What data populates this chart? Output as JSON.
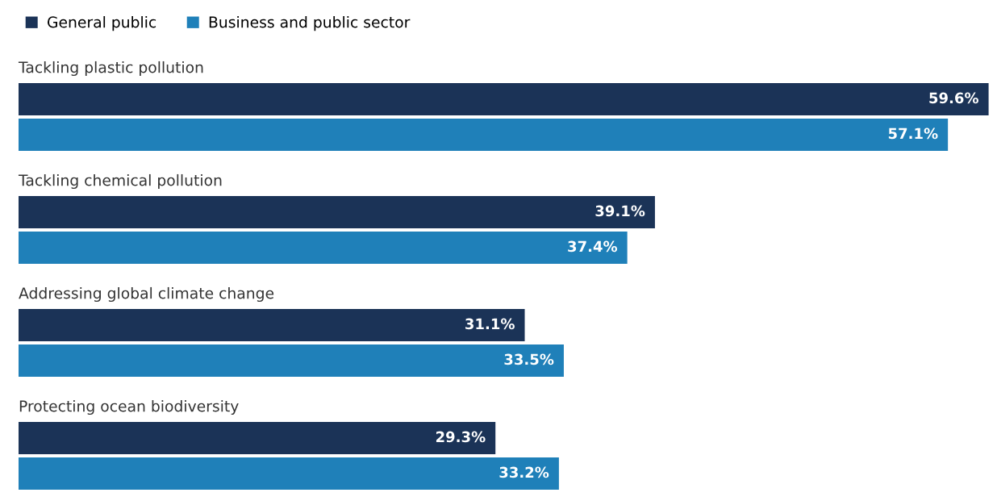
{
  "chart_data": {
    "type": "bar",
    "orientation": "horizontal",
    "categories": [
      "Tackling plastic pollution",
      "Tackling chemical pollution",
      "Addressing global climate change",
      "Protecting ocean biodiversity"
    ],
    "series": [
      {
        "name": "General public",
        "color": "#1b3357",
        "values": [
          59.6,
          39.1,
          31.1,
          29.3
        ],
        "value_labels": [
          "59.6%",
          "39.1%",
          "31.1%",
          "29.3%"
        ]
      },
      {
        "name": "Business and public sector",
        "color": "#1f80b9",
        "values": [
          57.1,
          37.4,
          33.5,
          33.2
        ],
        "value_labels": [
          "57.1%",
          "37.4%",
          "33.5%",
          "33.2%"
        ]
      }
    ],
    "legend": "top left"
  }
}
